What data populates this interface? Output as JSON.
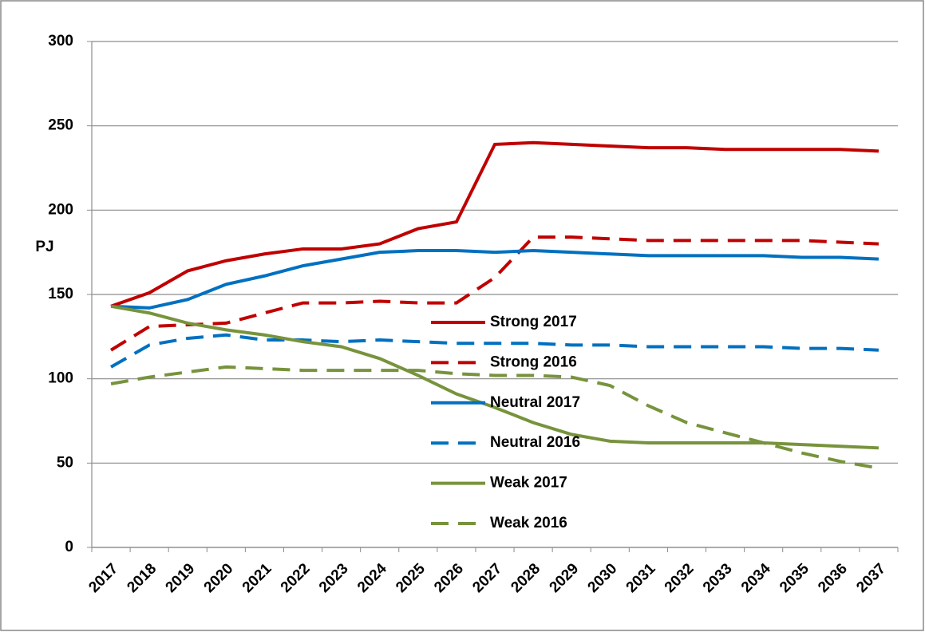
{
  "chart_data": {
    "type": "line",
    "y_label": "PJ",
    "categories": [
      "2017",
      "2018",
      "2019",
      "2020",
      "2021",
      "2022",
      "2023",
      "2024",
      "2025",
      "2026",
      "2027",
      "2028",
      "2029",
      "2030",
      "2031",
      "2032",
      "2033",
      "2034",
      "2035",
      "2036",
      "2037"
    ],
    "ylim": [
      0,
      300
    ],
    "yticks": [
      0,
      50,
      100,
      150,
      200,
      250,
      300
    ],
    "grid": true,
    "series": [
      {
        "name": "Strong 2017",
        "color": "#c00000",
        "dashed": false,
        "values": [
          143,
          151,
          164,
          170,
          174,
          177,
          177,
          180,
          189,
          193,
          239,
          240,
          239,
          238,
          237,
          237,
          236,
          236,
          236,
          236,
          235
        ]
      },
      {
        "name": "Strong 2016",
        "color": "#c00000",
        "dashed": true,
        "values": [
          117,
          131,
          132,
          133,
          139,
          145,
          145,
          146,
          145,
          145,
          160,
          184,
          184,
          183,
          182,
          182,
          182,
          182,
          182,
          181,
          180
        ]
      },
      {
        "name": "Neutral 2017",
        "color": "#0070c0",
        "dashed": false,
        "values": [
          143,
          142,
          147,
          156,
          161,
          167,
          171,
          175,
          176,
          176,
          175,
          176,
          175,
          174,
          173,
          173,
          173,
          173,
          172,
          172,
          171
        ]
      },
      {
        "name": "Neutral 2016",
        "color": "#0070c0",
        "dashed": true,
        "values": [
          107,
          120,
          124,
          126,
          123,
          123,
          122,
          123,
          122,
          121,
          121,
          121,
          120,
          120,
          119,
          119,
          119,
          119,
          118,
          118,
          117
        ]
      },
      {
        "name": "Weak 2017",
        "color": "#77933c",
        "dashed": false,
        "values": [
          143,
          139,
          133,
          129,
          126,
          122,
          119,
          112,
          102,
          91,
          83,
          74,
          67,
          63,
          62,
          62,
          62,
          62,
          61,
          60,
          59
        ]
      },
      {
        "name": "Weak 2016",
        "color": "#77933c",
        "dashed": true,
        "values": [
          97,
          101,
          104,
          107,
          106,
          105,
          105,
          105,
          105,
          103,
          102,
          102,
          101,
          96,
          84,
          74,
          68,
          62,
          56,
          51,
          47
        ]
      }
    ]
  }
}
